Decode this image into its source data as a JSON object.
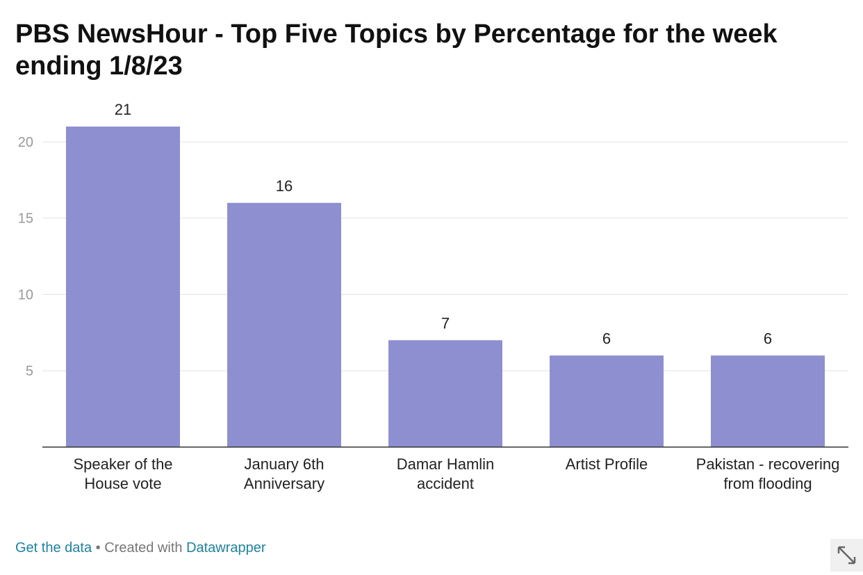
{
  "chart_data": {
    "type": "bar",
    "title": "PBS NewsHour - Top Five Topics by Percentage for the week ending 1/8/23",
    "categories": [
      "Speaker of the House vote",
      "January 6th Anniversary",
      "Damar Hamlin accident",
      "Artist Profile",
      "Pakistan - recovering from flooding"
    ],
    "values": [
      21,
      16,
      7,
      6,
      6
    ],
    "color": "#8e8fd1",
    "ylim": [
      0,
      21
    ],
    "yticks": [
      5,
      10,
      15,
      20
    ],
    "grid": true
  },
  "footer": {
    "get_data": "Get the data",
    "separator": "•",
    "created_with": "Created with",
    "datawrapper": "Datawrapper"
  }
}
